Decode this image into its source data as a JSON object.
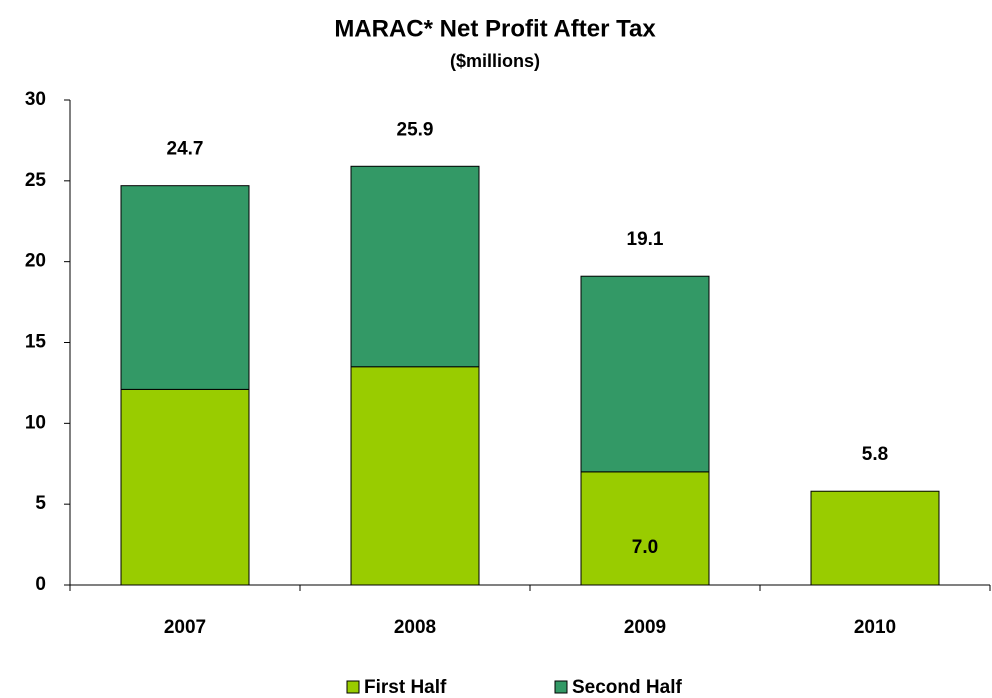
{
  "chart_data": {
    "type": "stacked_bar",
    "title": "MARAC* Net Profit After Tax",
    "subtitle": "($millions)",
    "categories": [
      "2007",
      "2008",
      "2009",
      "2010"
    ],
    "series": [
      {
        "name": "First Half",
        "color": "#99cc00",
        "values": [
          12.1,
          13.5,
          7.0,
          5.8
        ],
        "value_labels": [
          null,
          null,
          "7.0",
          null
        ]
      },
      {
        "name": "Second Half",
        "color": "#339966",
        "values": [
          12.6,
          12.4,
          12.1,
          null
        ]
      }
    ],
    "totals": [
      24.7,
      25.9,
      19.1,
      5.8
    ],
    "ylim": [
      0,
      30
    ],
    "yticks": [
      0,
      5,
      10,
      15,
      20,
      25,
      30
    ],
    "grid": false,
    "legend": "bottom"
  }
}
